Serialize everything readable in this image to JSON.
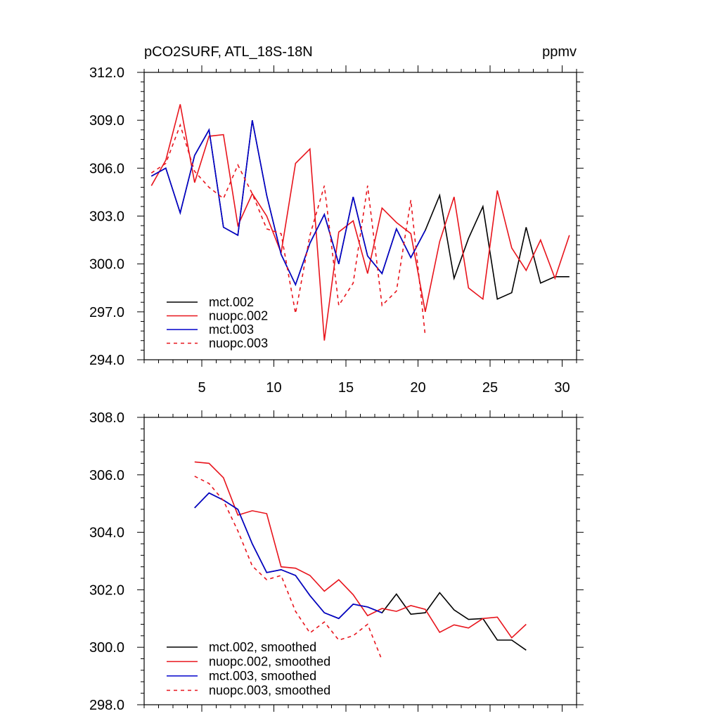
{
  "chart_data": [
    {
      "type": "line",
      "title": "pCO2SURF, ATL_18S-18N",
      "units": "ppmv",
      "xlabel": "",
      "ylabel": "",
      "xlim": [
        1,
        31
      ],
      "ylim": [
        294,
        312
      ],
      "xticks": [
        {
          "value": 5,
          "label": "5"
        },
        {
          "value": 10,
          "label": "10"
        },
        {
          "value": 15,
          "label": "15"
        },
        {
          "value": 20,
          "label": "20"
        },
        {
          "value": 25,
          "label": "25"
        },
        {
          "value": 30,
          "label": "30"
        }
      ],
      "yticks": [
        {
          "value": 294,
          "label": "294.0"
        },
        {
          "value": 297,
          "label": "297.0"
        },
        {
          "value": 300,
          "label": "300.0"
        },
        {
          "value": 303,
          "label": "303.0"
        },
        {
          "value": 306,
          "label": "306.0"
        },
        {
          "value": 309,
          "label": "309.0"
        },
        {
          "value": 312,
          "label": "312.0"
        }
      ],
      "grid": false,
      "legend_position": "bottom-left",
      "series": [
        {
          "name": "mct.002",
          "color": "#000000",
          "dash": "solid",
          "x": [
            1.5,
            2.5,
            3.5,
            4.5,
            5.5,
            6.5,
            7.5,
            8.5,
            9.5,
            10.5,
            11.5,
            12.5,
            13.5,
            14.5,
            15.5,
            16.5,
            17.5,
            18.5,
            19.5,
            20.5,
            21.5,
            22.5,
            23.5,
            24.5,
            25.5,
            26.5,
            27.5,
            28.5,
            29.5,
            30.5
          ],
          "y": [
            305.5,
            306.0,
            303.2,
            306.8,
            308.4,
            302.3,
            301.8,
            309.0,
            304.3,
            300.6,
            298.7,
            301.3,
            303.1,
            300.0,
            304.2,
            300.5,
            299.4,
            302.2,
            300.4,
            302.1,
            304.3,
            299.1,
            301.6,
            303.6,
            297.8,
            298.2,
            302.3,
            298.8,
            299.2,
            299.2
          ]
        },
        {
          "name": "nuopc.002",
          "color": "#e8141c",
          "dash": "solid",
          "x": [
            1.5,
            2.5,
            3.5,
            4.5,
            5.5,
            6.5,
            7.5,
            8.5,
            9.5,
            10.5,
            11.5,
            12.5,
            13.5,
            14.5,
            15.5,
            16.5,
            17.5,
            18.5,
            19.5,
            20.5,
            21.5,
            22.5,
            23.5,
            24.5,
            25.5,
            26.5,
            27.5,
            28.5,
            29.5,
            30.5
          ],
          "y": [
            304.9,
            306.5,
            310.0,
            305.1,
            308.0,
            308.1,
            302.4,
            304.4,
            303.0,
            300.7,
            306.3,
            307.2,
            295.2,
            302.0,
            302.7,
            299.4,
            303.5,
            302.6,
            301.9,
            297.0,
            301.4,
            304.2,
            298.5,
            297.8,
            304.6,
            301.0,
            299.6,
            301.5,
            299.1,
            301.8
          ]
        },
        {
          "name": "mct.003",
          "color": "#0000cc",
          "dash": "solid",
          "x": [
            1.5,
            2.5,
            3.5,
            4.5,
            5.5,
            6.5,
            7.5,
            8.5,
            9.5,
            10.5,
            11.5,
            12.5,
            13.5,
            14.5,
            15.5,
            16.5,
            17.5,
            18.5,
            19.5,
            20.5
          ],
          "y": [
            305.5,
            306.0,
            303.2,
            306.8,
            308.4,
            302.3,
            301.8,
            309.0,
            304.3,
            300.6,
            298.7,
            301.3,
            303.1,
            300.0,
            304.2,
            300.5,
            299.4,
            302.2,
            300.4,
            302.1
          ]
        },
        {
          "name": "nuopc.003",
          "color": "#e8141c",
          "dash": "dashed",
          "x": [
            1.5,
            2.5,
            3.5,
            4.5,
            5.5,
            6.5,
            7.5,
            8.5,
            9.5,
            10.5,
            11.5,
            12.5,
            13.5,
            14.5,
            15.5,
            16.5,
            17.5,
            18.5,
            19.5,
            20.5
          ],
          "y": [
            305.7,
            306.3,
            308.7,
            305.8,
            304.8,
            304.1,
            306.2,
            304.4,
            302.2,
            301.9,
            296.9,
            301.8,
            304.9,
            297.4,
            298.8,
            304.9,
            297.4,
            298.3,
            304.0,
            295.5
          ]
        }
      ]
    },
    {
      "type": "line",
      "title": "",
      "xlabel": "",
      "ylabel": "",
      "xlim": [
        1,
        31
      ],
      "ylim": [
        298,
        308
      ],
      "xticks": [
        {
          "value": 5,
          "label": ""
        },
        {
          "value": 10,
          "label": ""
        },
        {
          "value": 15,
          "label": ""
        },
        {
          "value": 20,
          "label": ""
        },
        {
          "value": 25,
          "label": ""
        },
        {
          "value": 30,
          "label": ""
        }
      ],
      "yticks": [
        {
          "value": 298,
          "label": "298.0"
        },
        {
          "value": 300,
          "label": "300.0"
        },
        {
          "value": 302,
          "label": "302.0"
        },
        {
          "value": 304,
          "label": "304.0"
        },
        {
          "value": 306,
          "label": "306.0"
        },
        {
          "value": 308,
          "label": "308.0"
        }
      ],
      "grid": false,
      "legend_position": "bottom-left",
      "series": [
        {
          "name": "mct.002, smoothed",
          "color": "#000000",
          "dash": "solid",
          "x": [
            4.5,
            5.5,
            6.5,
            7.5,
            8.5,
            9.5,
            10.5,
            11.5,
            12.5,
            13.5,
            14.5,
            15.5,
            16.5,
            17.5,
            18.5,
            19.5,
            20.5,
            21.5,
            22.5,
            23.5,
            24.5,
            25.5,
            26.5,
            27.5
          ],
          "y": [
            304.85,
            305.37,
            305.12,
            304.8,
            303.6,
            302.6,
            302.7,
            302.5,
            301.8,
            301.2,
            301.0,
            301.5,
            301.4,
            301.2,
            301.85,
            301.15,
            301.2,
            301.9,
            301.3,
            300.97,
            301.0,
            300.25,
            300.25,
            299.9
          ]
        },
        {
          "name": "nuopc.002, smoothed",
          "color": "#e8141c",
          "dash": "solid",
          "x": [
            4.5,
            5.5,
            6.5,
            7.5,
            8.5,
            9.5,
            10.5,
            11.5,
            12.5,
            13.5,
            14.5,
            15.5,
            16.5,
            17.5,
            18.5,
            19.5,
            20.5,
            21.5,
            22.5,
            23.5,
            24.5,
            25.5,
            26.5,
            27.5
          ],
          "y": [
            306.45,
            306.4,
            305.9,
            304.6,
            304.75,
            304.65,
            302.8,
            302.75,
            302.5,
            301.95,
            302.35,
            301.83,
            301.1,
            301.35,
            301.25,
            301.45,
            301.32,
            300.52,
            300.78,
            300.67,
            301.0,
            301.05,
            300.33,
            300.8
          ]
        },
        {
          "name": "mct.003, smoothed",
          "color": "#0000cc",
          "dash": "solid",
          "x": [
            4.5,
            5.5,
            6.5,
            7.5,
            8.5,
            9.5,
            10.5,
            11.5,
            12.5,
            13.5,
            14.5,
            15.5,
            16.5,
            17.5
          ],
          "y": [
            304.85,
            305.37,
            305.12,
            304.8,
            303.6,
            302.6,
            302.7,
            302.5,
            301.8,
            301.2,
            301.0,
            301.5,
            301.4,
            301.2
          ]
        },
        {
          "name": "nuopc.003, smoothed",
          "color": "#e8141c",
          "dash": "dashed",
          "x": [
            4.5,
            5.5,
            6.5,
            7.5,
            8.5,
            9.5,
            10.5,
            11.5,
            12.5,
            13.5,
            14.5,
            15.5,
            16.5,
            17.5
          ],
          "y": [
            305.95,
            305.7,
            305.1,
            304.05,
            302.83,
            302.35,
            302.5,
            301.25,
            300.5,
            300.88,
            300.25,
            300.4,
            300.8,
            299.55
          ]
        }
      ]
    }
  ]
}
